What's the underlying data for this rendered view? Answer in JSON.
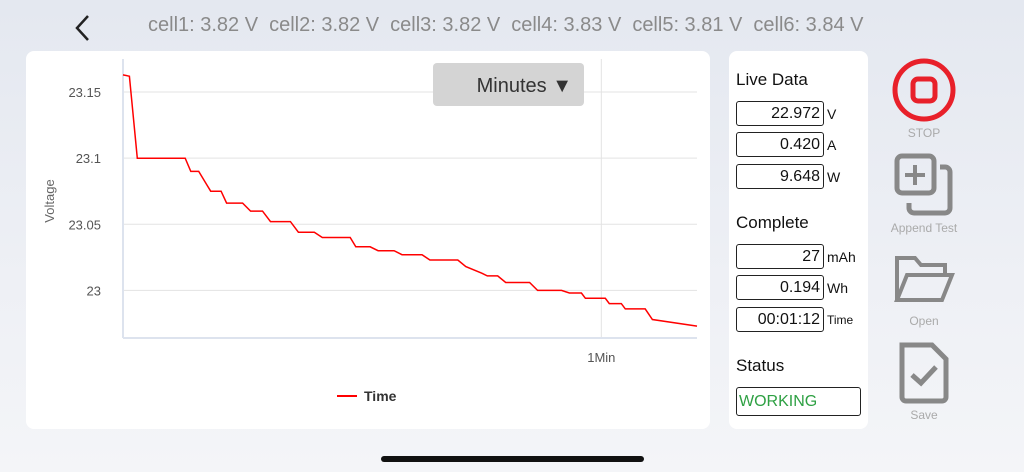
{
  "header": {
    "cells": [
      "cell1: 3.82 V",
      "cell2: 3.82 V",
      "cell3: 3.82 V",
      "cell4: 3.83 V",
      "cell5: 3.81 V",
      "cell6: 3.84 V"
    ]
  },
  "chart_controls": {
    "unit_selector": "Minutes ▼"
  },
  "chart_data": {
    "type": "line",
    "ylabel": "Voltage",
    "xlabel": "",
    "legend": {
      "entries": [
        "Time"
      ],
      "placement": "bottom"
    },
    "color": "#ff0000",
    "ylim": [
      22.964,
      23.175
    ],
    "xlim_seconds": [
      0,
      72
    ],
    "yticks": [
      23,
      23.05,
      23.1,
      23.15
    ],
    "ytick_labels": [
      "23",
      "23.05",
      "23.1",
      "23.15"
    ],
    "xtick_labels": [
      {
        "value": 60,
        "label": "1Min"
      }
    ],
    "grid": true,
    "x": [
      0,
      0.8,
      1.8,
      7.8,
      8.5,
      9.5,
      10.5,
      11,
      12.3,
      13,
      15,
      16,
      17.5,
      18.5,
      21,
      22,
      24,
      25,
      28.5,
      29.2,
      31,
      32,
      34,
      35,
      37.5,
      38.5,
      42,
      43,
      45,
      45.7,
      47,
      48,
      51,
      52,
      55,
      56,
      57.5,
      58,
      60.5,
      61,
      62.5,
      63,
      65.5,
      66.4,
      72
    ],
    "y": [
      23.163,
      23.162,
      23.1,
      23.1,
      23.09,
      23.09,
      23.08,
      23.075,
      23.075,
      23.066,
      23.066,
      23.06,
      23.06,
      23.052,
      23.052,
      23.044,
      23.044,
      23.04,
      23.04,
      23.033,
      23.033,
      23.03,
      23.03,
      23.027,
      23.027,
      23.023,
      23.023,
      23.018,
      23.013,
      23.011,
      23.011,
      23.006,
      23.006,
      23.0,
      23.0,
      22.998,
      22.998,
      22.994,
      22.994,
      22.99,
      22.99,
      22.986,
      22.986,
      22.978,
      22.973
    ]
  },
  "live": {
    "title": "Live Data",
    "voltage": "22.972",
    "voltage_unit": "V",
    "current": "0.420",
    "current_unit": "A",
    "power": "9.648",
    "power_unit": "W"
  },
  "complete": {
    "title": "Complete",
    "capacity": "27",
    "capacity_unit": "mAh",
    "energy": "0.194",
    "energy_unit": "Wh",
    "time": "00:01:12",
    "time_unit": "Time"
  },
  "status": {
    "title": "Status",
    "value": "WORKING"
  },
  "actions": {
    "stop": "STOP",
    "append": "Append Test",
    "open": "Open",
    "save": "Save"
  },
  "colors": {
    "stop": "#e8202a",
    "status": "#2ea043",
    "line": "#ff0000"
  }
}
